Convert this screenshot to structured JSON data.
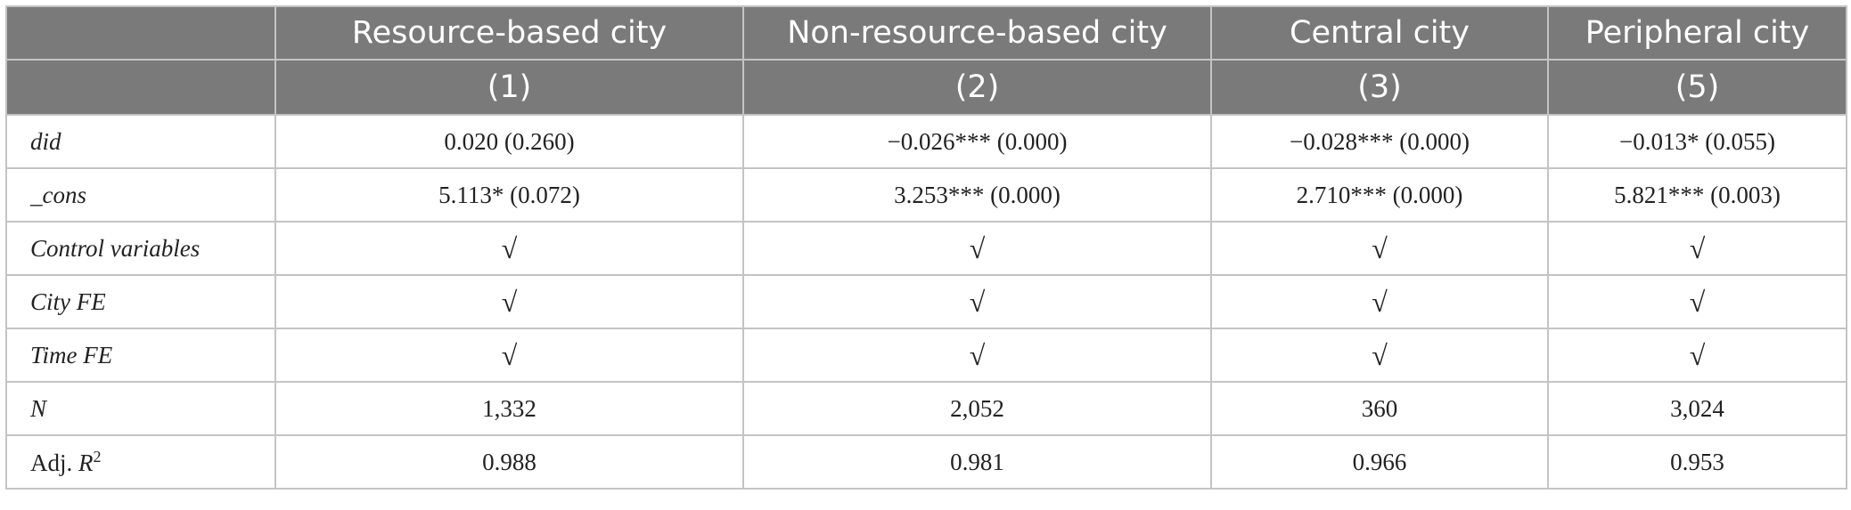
{
  "columns": [
    "",
    "Resource-based city",
    "Non-resource-based city",
    "Central city",
    "Peripheral city"
  ],
  "column_numbers": [
    "",
    "(1)",
    "(2)",
    "(3)",
    "(5)"
  ],
  "rows": [
    {
      "label": "did",
      "cells": [
        "0.020 (0.260)",
        "−0.026*** (0.000)",
        "−0.028*** (0.000)",
        "−0.013* (0.055)"
      ]
    },
    {
      "label": "_cons",
      "cells": [
        "5.113* (0.072)",
        "3.253*** (0.000)",
        "2.710*** (0.000)",
        "5.821*** (0.003)"
      ]
    },
    {
      "label": "Control variables",
      "cells": [
        "√",
        "√",
        "√",
        "√"
      ]
    },
    {
      "label": "City FE",
      "cells": [
        "√",
        "√",
        "√",
        "√"
      ]
    },
    {
      "label": "Time FE",
      "cells": [
        "√",
        "√",
        "√",
        "√"
      ]
    },
    {
      "label": "N",
      "cells": [
        "1,332",
        "2,052",
        "360",
        "3,024"
      ]
    },
    {
      "label": "Adj. R",
      "label_sup": "2",
      "cells": [
        "0.988",
        "0.981",
        "0.966",
        "0.953"
      ]
    }
  ]
}
